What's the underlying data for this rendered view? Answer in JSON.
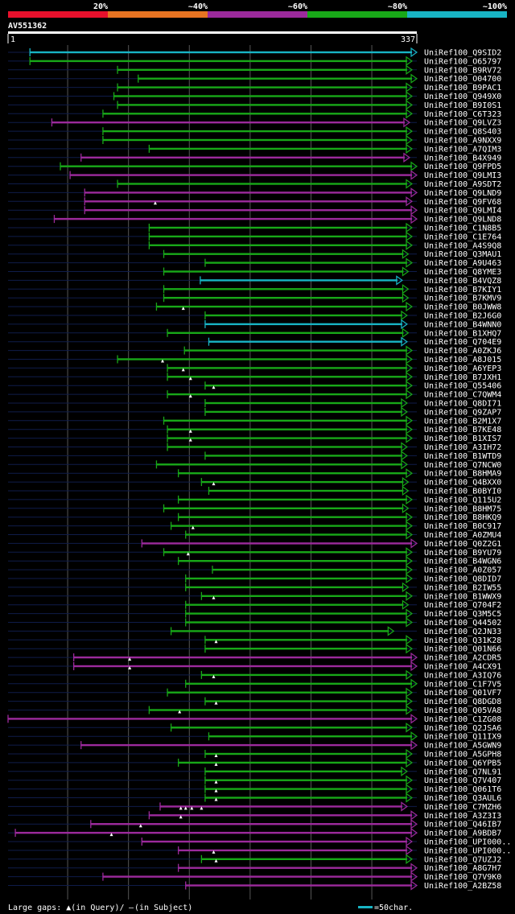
{
  "query": {
    "name": "AV551362",
    "start": 1,
    "end": 337
  },
  "colors": {
    "background": "#000000",
    "tier_20": "#e8102c",
    "tier_40": "#e87422",
    "tier_60": "#9c2a9c",
    "tier_80": "#18a818",
    "tier_100": "#18b4c4",
    "unaligned": "#0f1c4a",
    "axis": "#ffffff",
    "grid": "#555555"
  },
  "legend": {
    "tiers": [
      {
        "label": "20%",
        "color": "#e8102c"
      },
      {
        "label": "~40%",
        "color": "#e87422"
      },
      {
        "label": "~60%",
        "color": "#9c2a9c"
      },
      {
        "label": "~80%",
        "color": "#18a818"
      },
      {
        "label": "~100%",
        "color": "#18b4c4"
      }
    ],
    "footer_gaps": "Large gaps: ▲(in Query)/",
    "footer_subject_mark": "–",
    "footer_subject_text": "(in Subject)",
    "footer_scale": "=50char."
  },
  "chart_data": {
    "type": "alignment",
    "x_range": [
      1,
      337
    ],
    "gridlines": [
      50,
      100,
      150,
      200,
      250,
      300
    ],
    "hits": [
      {
        "id": "UniRef100_Q9SID2",
        "start": 19,
        "end": 337,
        "identity": "100",
        "qgaps": []
      },
      {
        "id": "UniRef100_O65797",
        "start": 19,
        "end": 333,
        "identity": "80",
        "qgaps": []
      },
      {
        "id": "UniRef100_B9RV72",
        "start": 91,
        "end": 333,
        "identity": "80",
        "qgaps": []
      },
      {
        "id": "UniRef100_O04700",
        "start": 108,
        "end": 337,
        "identity": "80",
        "qgaps": []
      },
      {
        "id": "UniRef100_B9PAC1",
        "start": 91,
        "end": 333,
        "identity": "80",
        "qgaps": []
      },
      {
        "id": "UniRef100_Q949X0",
        "start": 88,
        "end": 333,
        "identity": "80",
        "qgaps": []
      },
      {
        "id": "UniRef100_B9I0S1",
        "start": 91,
        "end": 333,
        "identity": "80",
        "qgaps": []
      },
      {
        "id": "UniRef100_C6T323",
        "start": 79,
        "end": 333,
        "identity": "80",
        "qgaps": []
      },
      {
        "id": "UniRef100_Q9LVZ3",
        "start": 37,
        "end": 331,
        "identity": "60",
        "qgaps": []
      },
      {
        "id": "UniRef100_Q8S403",
        "start": 79,
        "end": 333,
        "identity": "80",
        "qgaps": []
      },
      {
        "id": "UniRef100_A9NXX9",
        "start": 79,
        "end": 333,
        "identity": "80",
        "qgaps": []
      },
      {
        "id": "UniRef100_A7QIM3",
        "start": 117,
        "end": 333,
        "identity": "80",
        "qgaps": []
      },
      {
        "id": "UniRef100_B4X949",
        "start": 61,
        "end": 331,
        "identity": "60",
        "qgaps": []
      },
      {
        "id": "UniRef100_Q9FPD5",
        "start": 44,
        "end": 337,
        "identity": "80",
        "qgaps": []
      },
      {
        "id": "UniRef100_Q9LMI3",
        "start": 52,
        "end": 337,
        "identity": "60",
        "qgaps": []
      },
      {
        "id": "UniRef100_A9SDT2",
        "start": 91,
        "end": 333,
        "identity": "80",
        "qgaps": []
      },
      {
        "id": "UniRef100_Q9LND9",
        "start": 64,
        "end": 337,
        "identity": "60",
        "qgaps": []
      },
      {
        "id": "UniRef100_Q9FV68",
        "start": 64,
        "end": 333,
        "identity": "60",
        "qgaps": [
          122
        ]
      },
      {
        "id": "UniRef100_Q9LMI4",
        "start": 64,
        "end": 337,
        "identity": "60",
        "qgaps": []
      },
      {
        "id": "UniRef100_Q9LND8",
        "start": 39,
        "end": 337,
        "identity": "60",
        "qgaps": []
      },
      {
        "id": "UniRef100_C1N8B5",
        "start": 117,
        "end": 333,
        "identity": "80",
        "qgaps": []
      },
      {
        "id": "UniRef100_C1E764",
        "start": 117,
        "end": 333,
        "identity": "80",
        "qgaps": []
      },
      {
        "id": "UniRef100_A4S9Q8",
        "start": 117,
        "end": 333,
        "identity": "80",
        "qgaps": []
      },
      {
        "id": "UniRef100_Q3MAU1",
        "start": 129,
        "end": 330,
        "identity": "80",
        "qgaps": []
      },
      {
        "id": "UniRef100_A9U463",
        "start": 163,
        "end": 333,
        "identity": "80",
        "qgaps": []
      },
      {
        "id": "UniRef100_Q8YME3",
        "start": 129,
        "end": 330,
        "identity": "80",
        "qgaps": []
      },
      {
        "id": "UniRef100_B4VQZ8",
        "start": 159,
        "end": 325,
        "identity": "100",
        "qgaps": []
      },
      {
        "id": "UniRef100_B7KIY1",
        "start": 129,
        "end": 330,
        "identity": "80",
        "qgaps": []
      },
      {
        "id": "UniRef100_B7KMV9",
        "start": 129,
        "end": 330,
        "identity": "80",
        "qgaps": []
      },
      {
        "id": "UniRef100_B0JWW8",
        "start": 123,
        "end": 333,
        "identity": "80",
        "qgaps": [
          145
        ]
      },
      {
        "id": "UniRef100_B2J6G0",
        "start": 163,
        "end": 329,
        "identity": "80",
        "qgaps": []
      },
      {
        "id": "UniRef100_B4WNN0",
        "start": 163,
        "end": 329,
        "identity": "100",
        "qgaps": []
      },
      {
        "id": "UniRef100_B1XHQ7",
        "start": 132,
        "end": 330,
        "identity": "80",
        "qgaps": []
      },
      {
        "id": "UniRef100_Q704E9",
        "start": 166,
        "end": 329,
        "identity": "100",
        "qgaps": []
      },
      {
        "id": "UniRef100_A0ZKJ6",
        "start": 146,
        "end": 333,
        "identity": "80",
        "qgaps": []
      },
      {
        "id": "UniRef100_A8J015",
        "start": 91,
        "end": 333,
        "identity": "80",
        "qgaps": [
          128
        ]
      },
      {
        "id": "UniRef100_A6YEP3",
        "start": 132,
        "end": 333,
        "identity": "80",
        "qgaps": [
          145
        ]
      },
      {
        "id": "UniRef100_B7JXH1",
        "start": 132,
        "end": 333,
        "identity": "80",
        "qgaps": [
          151
        ]
      },
      {
        "id": "UniRef100_Q55406",
        "start": 163,
        "end": 333,
        "identity": "80",
        "qgaps": [
          170
        ]
      },
      {
        "id": "UniRef100_C7QWM4",
        "start": 132,
        "end": 333,
        "identity": "80",
        "qgaps": [
          151
        ]
      },
      {
        "id": "UniRef100_Q8DI71",
        "start": 163,
        "end": 329,
        "identity": "80",
        "qgaps": []
      },
      {
        "id": "UniRef100_Q9ZAP7",
        "start": 163,
        "end": 329,
        "identity": "80",
        "qgaps": []
      },
      {
        "id": "UniRef100_B2M1X7",
        "start": 129,
        "end": 333,
        "identity": "80",
        "qgaps": []
      },
      {
        "id": "UniRef100_B7KE48",
        "start": 132,
        "end": 333,
        "identity": "80",
        "qgaps": [
          151
        ]
      },
      {
        "id": "UniRef100_B1XIS7",
        "start": 132,
        "end": 333,
        "identity": "80",
        "qgaps": [
          151
        ]
      },
      {
        "id": "UniRef100_A3IH72",
        "start": 132,
        "end": 329,
        "identity": "80",
        "qgaps": []
      },
      {
        "id": "UniRef100_B1WTD9",
        "start": 163,
        "end": 329,
        "identity": "80",
        "qgaps": []
      },
      {
        "id": "UniRef100_Q7NCW0",
        "start": 123,
        "end": 329,
        "identity": "80",
        "qgaps": []
      },
      {
        "id": "UniRef100_B8HMA9",
        "start": 141,
        "end": 333,
        "identity": "80",
        "qgaps": []
      },
      {
        "id": "UniRef100_Q4BXX0",
        "start": 160,
        "end": 330,
        "identity": "80",
        "qgaps": [
          170
        ]
      },
      {
        "id": "UniRef100_B0BYI0",
        "start": 166,
        "end": 330,
        "identity": "80",
        "qgaps": []
      },
      {
        "id": "UniRef100_Q115U2",
        "start": 141,
        "end": 333,
        "identity": "80",
        "qgaps": []
      },
      {
        "id": "UniRef100_B8HM75",
        "start": 129,
        "end": 330,
        "identity": "80",
        "qgaps": []
      },
      {
        "id": "UniRef100_B8HKQ9",
        "start": 141,
        "end": 333,
        "identity": "80",
        "qgaps": []
      },
      {
        "id": "UniRef100_B0C917",
        "start": 135,
        "end": 333,
        "identity": "80",
        "qgaps": [
          153
        ]
      },
      {
        "id": "UniRef100_A0ZMU4",
        "start": 147,
        "end": 333,
        "identity": "80",
        "qgaps": []
      },
      {
        "id": "UniRef100_Q0Z2G1",
        "start": 111,
        "end": 337,
        "identity": "60",
        "qgaps": []
      },
      {
        "id": "UniRef100_B9YU79",
        "start": 129,
        "end": 333,
        "identity": "80",
        "qgaps": [
          149
        ]
      },
      {
        "id": "UniRef100_B4WGN6",
        "start": 141,
        "end": 333,
        "identity": "80",
        "qgaps": []
      },
      {
        "id": "UniRef100_A0Z057",
        "start": 169,
        "end": 333,
        "identity": "80",
        "qgaps": []
      },
      {
        "id": "UniRef100_Q8DID7",
        "start": 147,
        "end": 333,
        "identity": "80",
        "qgaps": []
      },
      {
        "id": "UniRef100_B2IW55",
        "start": 147,
        "end": 330,
        "identity": "80",
        "qgaps": []
      },
      {
        "id": "UniRef100_B1WWX9",
        "start": 160,
        "end": 333,
        "identity": "80",
        "qgaps": [
          170
        ]
      },
      {
        "id": "UniRef100_Q704F2",
        "start": 147,
        "end": 330,
        "identity": "80",
        "qgaps": []
      },
      {
        "id": "UniRef100_Q3M5C5",
        "start": 147,
        "end": 333,
        "identity": "80",
        "qgaps": []
      },
      {
        "id": "UniRef100_Q44502",
        "start": 147,
        "end": 333,
        "identity": "80",
        "qgaps": []
      },
      {
        "id": "UniRef100_Q2JN33",
        "start": 135,
        "end": 318,
        "identity": "80",
        "qgaps": []
      },
      {
        "id": "UniRef100_Q31K28",
        "start": 163,
        "end": 333,
        "identity": "80",
        "qgaps": [
          172
        ]
      },
      {
        "id": "UniRef100_Q01N66",
        "start": 163,
        "end": 333,
        "identity": "80",
        "qgaps": []
      },
      {
        "id": "UniRef100_A2CDR5",
        "start": 55,
        "end": 337,
        "identity": "60",
        "qgaps": [
          101
        ]
      },
      {
        "id": "UniRef100_A4CX91",
        "start": 55,
        "end": 337,
        "identity": "60",
        "qgaps": [
          101
        ]
      },
      {
        "id": "UniRef100_A3IQ76",
        "start": 160,
        "end": 333,
        "identity": "80",
        "qgaps": [
          170
        ]
      },
      {
        "id": "UniRef100_C1F7V5",
        "start": 147,
        "end": 337,
        "identity": "80",
        "qgaps": []
      },
      {
        "id": "UniRef100_Q01VF7",
        "start": 132,
        "end": 333,
        "identity": "80",
        "qgaps": []
      },
      {
        "id": "UniRef100_Q8DGD8",
        "start": 163,
        "end": 333,
        "identity": "80",
        "qgaps": [
          172
        ]
      },
      {
        "id": "UniRef100_Q05VA8",
        "start": 117,
        "end": 333,
        "identity": "80",
        "qgaps": [
          142
        ]
      },
      {
        "id": "UniRef100_C1ZG08",
        "start": 1,
        "end": 337,
        "identity": "60",
        "qgaps": []
      },
      {
        "id": "UniRef100_Q2JSA6",
        "start": 135,
        "end": 333,
        "identity": "80",
        "qgaps": []
      },
      {
        "id": "UniRef100_Q11IX9",
        "start": 166,
        "end": 337,
        "identity": "80",
        "qgaps": []
      },
      {
        "id": "UniRef100_A5GWN9",
        "start": 61,
        "end": 337,
        "identity": "60",
        "qgaps": []
      },
      {
        "id": "UniRef100_A5GPH8",
        "start": 163,
        "end": 333,
        "identity": "80",
        "qgaps": [
          172
        ]
      },
      {
        "id": "UniRef100_Q6YPB5",
        "start": 141,
        "end": 333,
        "identity": "80",
        "qgaps": [
          172
        ]
      },
      {
        "id": "UniRef100_Q7NL91",
        "start": 163,
        "end": 329,
        "identity": "80",
        "qgaps": []
      },
      {
        "id": "UniRef100_Q7V407",
        "start": 163,
        "end": 333,
        "identity": "80",
        "qgaps": [
          172
        ]
      },
      {
        "id": "UniRef100_Q061T6",
        "start": 163,
        "end": 333,
        "identity": "80",
        "qgaps": [
          172
        ]
      },
      {
        "id": "UniRef100_Q3AUL6",
        "start": 163,
        "end": 333,
        "identity": "80",
        "qgaps": [
          172
        ]
      },
      {
        "id": "UniRef100_C7MZH6",
        "start": 126,
        "end": 329,
        "identity": "60",
        "qgaps": [
          143,
          147,
          152,
          160
        ]
      },
      {
        "id": "UniRef100_A3Z3I3",
        "start": 117,
        "end": 337,
        "identity": "60",
        "qgaps": [
          143
        ]
      },
      {
        "id": "UniRef100_Q46IB7",
        "start": 69,
        "end": 337,
        "identity": "60",
        "qgaps": [
          110
        ]
      },
      {
        "id": "UniRef100_A9BDB7",
        "start": 7,
        "end": 337,
        "identity": "60",
        "qgaps": [
          86
        ]
      },
      {
        "id": "UniRef100_UPI000..",
        "start": 111,
        "end": 333,
        "identity": "60",
        "qgaps": []
      },
      {
        "id": "UniRef100_UPI000..",
        "start": 141,
        "end": 333,
        "identity": "60",
        "qgaps": [
          170
        ]
      },
      {
        "id": "UniRef100_Q7UZJ2",
        "start": 160,
        "end": 333,
        "identity": "80",
        "qgaps": [
          172
        ]
      },
      {
        "id": "UniRef100_A8G7H7",
        "start": 141,
        "end": 337,
        "identity": "60",
        "qgaps": []
      },
      {
        "id": "UniRef100_Q7V9K0",
        "start": 79,
        "end": 337,
        "identity": "60",
        "qgaps": []
      },
      {
        "id": "UniRef100_A2BZ58",
        "start": 147,
        "end": 337,
        "identity": "60",
        "qgaps": []
      }
    ]
  }
}
